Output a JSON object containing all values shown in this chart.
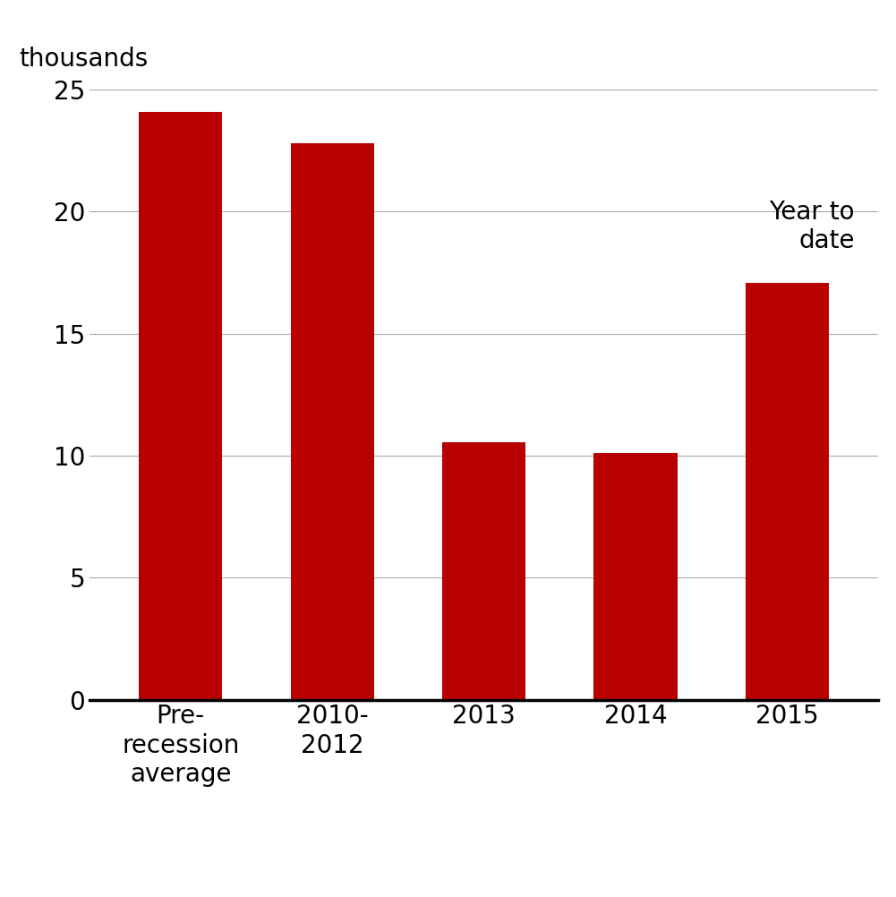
{
  "categories": [
    "Pre-\nrecession\naverage",
    "2010-\n2012",
    "2013",
    "2014",
    "2015"
  ],
  "values": [
    24.1,
    22.8,
    10.55,
    10.1,
    17.1
  ],
  "bar_color": "#B80000",
  "ylabel": "thousands",
  "ylim": [
    0,
    25
  ],
  "yticks": [
    0,
    5,
    10,
    15,
    20,
    25
  ],
  "annotation_text": "Year to\ndate",
  "background_color": "#ffffff",
  "grid_color": "#aaaaaa",
  "ylabel_fontsize": 20,
  "tick_fontsize": 20,
  "annotation_fontsize": 20,
  "bar_width": 0.55
}
